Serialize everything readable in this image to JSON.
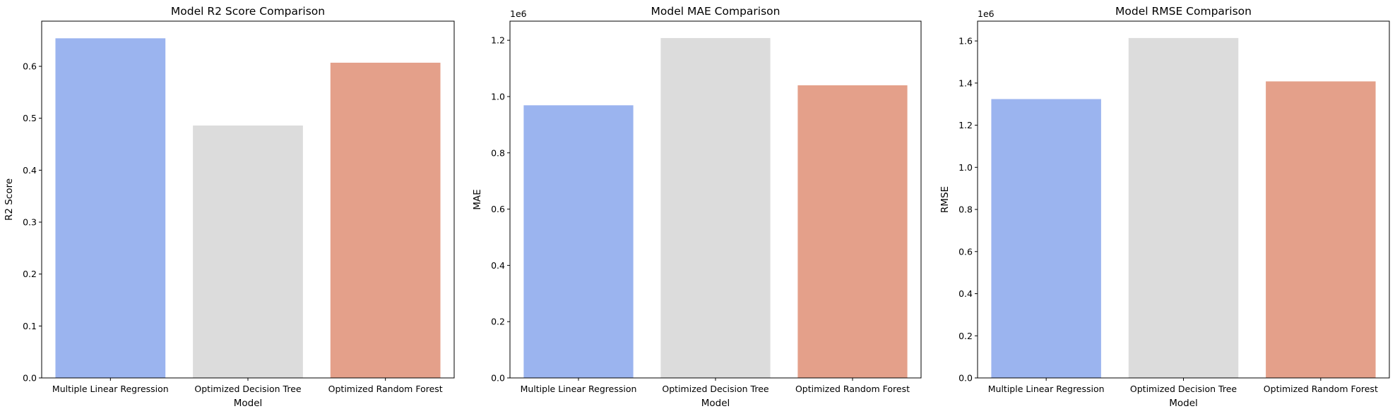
{
  "chart_data": [
    {
      "type": "bar",
      "title": "Model R2 Score Comparison",
      "xlabel": "Model",
      "ylabel": "R2 Score",
      "categories": [
        "Multiple Linear Regression",
        "Optimized Decision Tree",
        "Optimized Random Forest"
      ],
      "values": [
        0.654,
        0.486,
        0.607
      ],
      "colors": [
        "#9bb4ef",
        "#dcdcdc",
        "#e4a08a"
      ],
      "ylim": [
        0,
        0.687
      ],
      "yticks": [
        "0.0",
        "0.1",
        "0.2",
        "0.3",
        "0.4",
        "0.5",
        "0.6"
      ],
      "ytick_values": [
        0,
        0.1,
        0.2,
        0.3,
        0.4,
        0.5,
        0.6
      ],
      "offset_label": "",
      "grid": false,
      "legend": "none"
    },
    {
      "type": "bar",
      "title": "Model MAE Comparison",
      "xlabel": "Model",
      "ylabel": "MAE",
      "categories": [
        "Multiple Linear Regression",
        "Optimized Decision Tree",
        "Optimized Random Forest"
      ],
      "values": [
        0.969,
        1.208,
        1.04
      ],
      "colors": [
        "#9bb4ef",
        "#dcdcdc",
        "#e4a08a"
      ],
      "ylim": [
        0,
        1.268
      ],
      "yticks": [
        "0.0",
        "0.2",
        "0.4",
        "0.6",
        "0.8",
        "1.0",
        "1.2"
      ],
      "ytick_values": [
        0,
        0.2,
        0.4,
        0.6,
        0.8,
        1.0,
        1.2
      ],
      "offset_label": "1e6",
      "grid": false,
      "legend": "none"
    },
    {
      "type": "bar",
      "title": "Model RMSE Comparison",
      "xlabel": "Model",
      "ylabel": "RMSE",
      "categories": [
        "Multiple Linear Regression",
        "Optimized Decision Tree",
        "Optimized Random Forest"
      ],
      "values": [
        1.324,
        1.614,
        1.408
      ],
      "colors": [
        "#9bb4ef",
        "#dcdcdc",
        "#e4a08a"
      ],
      "ylim": [
        0,
        1.694
      ],
      "yticks": [
        "0.0",
        "0.2",
        "0.4",
        "0.6",
        "0.8",
        "1.0",
        "1.2",
        "1.4",
        "1.6"
      ],
      "ytick_values": [
        0,
        0.2,
        0.4,
        0.6,
        0.8,
        1.0,
        1.2,
        1.4,
        1.6
      ],
      "offset_label": "1e6",
      "grid": false,
      "legend": "none"
    }
  ]
}
